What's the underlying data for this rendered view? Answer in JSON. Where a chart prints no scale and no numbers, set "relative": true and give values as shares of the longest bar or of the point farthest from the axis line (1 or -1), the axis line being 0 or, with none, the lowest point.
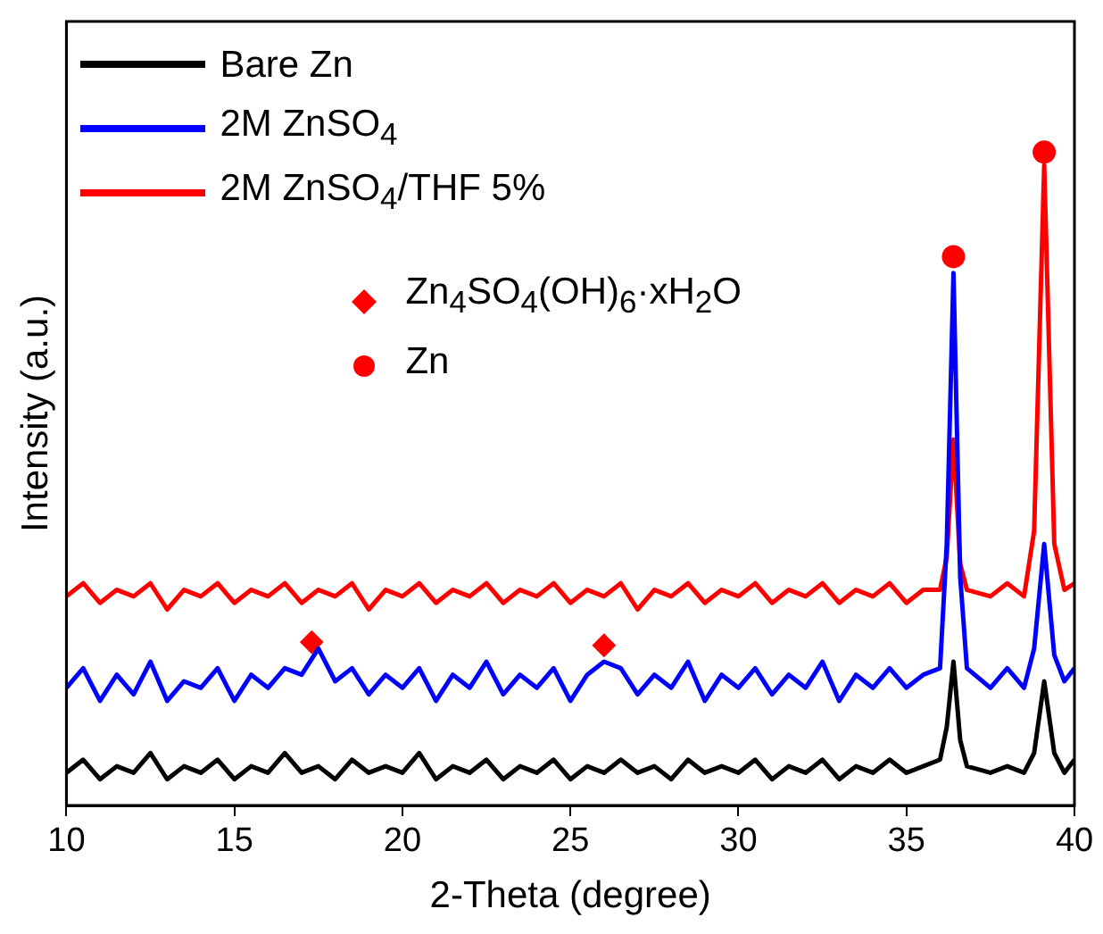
{
  "chart_data": {
    "type": "line",
    "relative": true,
    "xlabel": "2-Theta (degree)",
    "ylabel": "Intensity (a.u.)",
    "xlim": [
      10,
      40
    ],
    "xticks": [
      10,
      15,
      20,
      25,
      30,
      35,
      40
    ],
    "grid": false,
    "legend": "top left",
    "line_style": "solid",
    "x": [
      10,
      10.5,
      11,
      11.5,
      12,
      12.5,
      13,
      13.5,
      14,
      14.5,
      15,
      15.5,
      16,
      16.5,
      17,
      17.5,
      18,
      18.5,
      19,
      19.5,
      20,
      20.5,
      21,
      21.5,
      22,
      22.5,
      23,
      23.5,
      24,
      24.5,
      25,
      25.5,
      26,
      26.5,
      27,
      27.5,
      28,
      28.5,
      29,
      29.5,
      30,
      30.5,
      31,
      31.5,
      32,
      32.5,
      33,
      33.5,
      34,
      34.5,
      35,
      35.5,
      36,
      36.2,
      36.4,
      36.6,
      36.8,
      37.5,
      38,
      38.5,
      38.8,
      39.1,
      39.4,
      39.7,
      40
    ],
    "series": [
      {
        "name": "Bare Zn",
        "color": "#000000",
        "values": [
          0.05,
          0.07,
          0.04,
          0.06,
          0.05,
          0.08,
          0.04,
          0.06,
          0.05,
          0.07,
          0.04,
          0.06,
          0.05,
          0.08,
          0.05,
          0.06,
          0.04,
          0.07,
          0.05,
          0.06,
          0.05,
          0.08,
          0.04,
          0.06,
          0.05,
          0.07,
          0.04,
          0.06,
          0.05,
          0.07,
          0.04,
          0.06,
          0.05,
          0.07,
          0.05,
          0.06,
          0.04,
          0.07,
          0.05,
          0.06,
          0.05,
          0.07,
          0.04,
          0.06,
          0.05,
          0.07,
          0.04,
          0.06,
          0.05,
          0.07,
          0.05,
          0.06,
          0.07,
          0.12,
          0.22,
          0.1,
          0.06,
          0.05,
          0.06,
          0.05,
          0.08,
          0.19,
          0.08,
          0.05,
          0.07
        ]
      },
      {
        "name": "2M ZnSO$_{4}$",
        "color": "#0000ff",
        "values": [
          0.18,
          0.21,
          0.16,
          0.2,
          0.17,
          0.22,
          0.16,
          0.19,
          0.18,
          0.21,
          0.16,
          0.2,
          0.18,
          0.21,
          0.2,
          0.24,
          0.19,
          0.21,
          0.17,
          0.2,
          0.18,
          0.21,
          0.16,
          0.2,
          0.18,
          0.22,
          0.17,
          0.2,
          0.18,
          0.21,
          0.16,
          0.2,
          0.22,
          0.21,
          0.17,
          0.2,
          0.18,
          0.22,
          0.16,
          0.2,
          0.18,
          0.21,
          0.17,
          0.2,
          0.18,
          0.22,
          0.16,
          0.2,
          0.18,
          0.21,
          0.18,
          0.2,
          0.21,
          0.4,
          0.815,
          0.35,
          0.21,
          0.18,
          0.21,
          0.18,
          0.24,
          0.4,
          0.23,
          0.19,
          0.21
        ]
      },
      {
        "name": "2M ZnSO$_{4}$/THF 5%",
        "color": "#ff0000",
        "values": [
          0.32,
          0.34,
          0.31,
          0.33,
          0.32,
          0.34,
          0.3,
          0.33,
          0.32,
          0.34,
          0.31,
          0.33,
          0.32,
          0.34,
          0.31,
          0.33,
          0.32,
          0.34,
          0.3,
          0.33,
          0.32,
          0.34,
          0.31,
          0.33,
          0.32,
          0.34,
          0.31,
          0.33,
          0.32,
          0.34,
          0.31,
          0.33,
          0.32,
          0.34,
          0.3,
          0.33,
          0.32,
          0.34,
          0.31,
          0.33,
          0.32,
          0.34,
          0.31,
          0.33,
          0.32,
          0.34,
          0.31,
          0.33,
          0.32,
          0.34,
          0.31,
          0.33,
          0.33,
          0.38,
          0.56,
          0.37,
          0.33,
          0.32,
          0.34,
          0.32,
          0.42,
          0.98,
          0.4,
          0.33,
          0.34
        ]
      },
      {
        "name": "Zn$_{4}$SO$_{4}$(OH)$_{6}$·xH$_{2}$O",
        "type": "scatter",
        "marker": "diamond",
        "color": "#ff0000",
        "x": [
          17.3,
          26
        ],
        "values": [
          0.25,
          0.245
        ]
      },
      {
        "name": "Zn",
        "type": "scatter",
        "marker": "circle",
        "color": "#ff0000",
        "x": [
          36.4,
          39.1
        ],
        "values": [
          0.84,
          1
        ]
      }
    ]
  }
}
